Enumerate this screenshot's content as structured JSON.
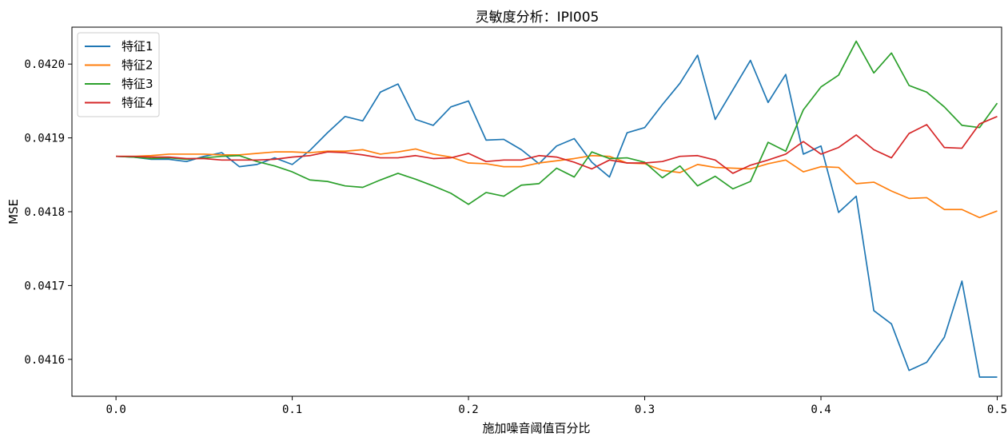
{
  "chart_data": {
    "type": "line",
    "title": "灵敏度分析：IPI005",
    "xlabel": "施加噪音阈值百分比",
    "ylabel": "MSE",
    "xlim": [
      -0.025,
      0.5025
    ],
    "ylim": [
      0.04155,
      0.04205
    ],
    "xticks": [
      "0.0",
      "0.1",
      "0.2",
      "0.3",
      "0.4",
      "0.5"
    ],
    "yticks": [
      "0.0416",
      "0.0417",
      "0.0418",
      "0.0419",
      "0.0420"
    ],
    "legend_position": "top-left",
    "grid": false,
    "x": [
      0.0,
      0.01,
      0.02,
      0.03,
      0.04,
      0.05,
      0.06,
      0.07,
      0.08,
      0.09,
      0.1,
      0.11,
      0.12,
      0.13,
      0.14,
      0.15,
      0.16,
      0.17,
      0.18,
      0.19,
      0.2,
      0.21,
      0.22,
      0.23,
      0.24,
      0.25,
      0.26,
      0.27,
      0.28,
      0.29,
      0.3,
      0.31,
      0.32,
      0.33,
      0.34,
      0.35,
      0.36,
      0.37,
      0.38,
      0.39,
      0.4,
      0.41,
      0.42,
      0.43,
      0.44,
      0.45,
      0.46,
      0.47,
      0.48,
      0.49,
      0.5
    ],
    "series": [
      {
        "name": "特征1",
        "color": "#1f77b4",
        "values": [
          0.041875,
          0.041874,
          0.041871,
          0.041871,
          0.041868,
          0.041875,
          0.04188,
          0.041861,
          0.041864,
          0.041873,
          0.041864,
          0.041883,
          0.041907,
          0.041929,
          0.041923,
          0.041962,
          0.041973,
          0.041925,
          0.041917,
          0.041942,
          0.04195,
          0.041897,
          0.041898,
          0.041884,
          0.041865,
          0.041889,
          0.041899,
          0.041867,
          0.041847,
          0.041907,
          0.041914,
          0.041945,
          0.041974,
          0.042012,
          0.041925,
          0.041965,
          0.042005,
          0.041948,
          0.041986,
          0.041878,
          0.041889,
          0.041799,
          0.041821,
          0.041666,
          0.041648,
          0.041585,
          0.041596,
          0.04163,
          0.041706,
          0.041576,
          0.041576
        ]
      },
      {
        "name": "特征2",
        "color": "#ff7f0e",
        "values": [
          0.041875,
          0.041875,
          0.041876,
          0.041878,
          0.041878,
          0.041878,
          0.041877,
          0.041877,
          0.041879,
          0.041881,
          0.041881,
          0.04188,
          0.041882,
          0.041882,
          0.041884,
          0.041878,
          0.041881,
          0.041885,
          0.041878,
          0.041874,
          0.041866,
          0.041865,
          0.041861,
          0.041861,
          0.041866,
          0.041869,
          0.041872,
          0.041876,
          0.041875,
          0.041866,
          0.041865,
          0.041856,
          0.041853,
          0.041864,
          0.04186,
          0.041859,
          0.041858,
          0.041865,
          0.04187,
          0.041854,
          0.041861,
          0.04186,
          0.041838,
          0.04184,
          0.041828,
          0.041818,
          0.041819,
          0.041803,
          0.041803,
          0.041792,
          0.041801
        ]
      },
      {
        "name": "特征3",
        "color": "#2ca02c",
        "values": [
          0.041875,
          0.041874,
          0.041872,
          0.041873,
          0.041871,
          0.041873,
          0.041875,
          0.041876,
          0.041868,
          0.041862,
          0.041854,
          0.041843,
          0.041841,
          0.041835,
          0.041833,
          0.041843,
          0.041852,
          0.041844,
          0.041835,
          0.041825,
          0.04181,
          0.041826,
          0.041821,
          0.041836,
          0.041838,
          0.041859,
          0.041847,
          0.041881,
          0.041872,
          0.041873,
          0.041867,
          0.041846,
          0.041862,
          0.041835,
          0.041848,
          0.041831,
          0.041841,
          0.041894,
          0.041882,
          0.041938,
          0.041969,
          0.041985,
          0.042031,
          0.041988,
          0.042015,
          0.041971,
          0.041962,
          0.041942,
          0.041917,
          0.041914,
          0.041947
        ]
      },
      {
        "name": "特征4",
        "color": "#d62728",
        "values": [
          0.041875,
          0.041875,
          0.041874,
          0.041874,
          0.041872,
          0.041872,
          0.04187,
          0.04187,
          0.04187,
          0.041871,
          0.041874,
          0.041876,
          0.041881,
          0.04188,
          0.041877,
          0.041873,
          0.041873,
          0.041876,
          0.041872,
          0.041873,
          0.041879,
          0.041868,
          0.04187,
          0.04187,
          0.041876,
          0.041874,
          0.041867,
          0.041858,
          0.04187,
          0.041866,
          0.041866,
          0.041868,
          0.041875,
          0.041876,
          0.04187,
          0.041852,
          0.041863,
          0.04187,
          0.041878,
          0.041895,
          0.041878,
          0.041887,
          0.041904,
          0.041884,
          0.041873,
          0.041906,
          0.041918,
          0.041887,
          0.041886,
          0.041919,
          0.041929
        ]
      }
    ]
  }
}
